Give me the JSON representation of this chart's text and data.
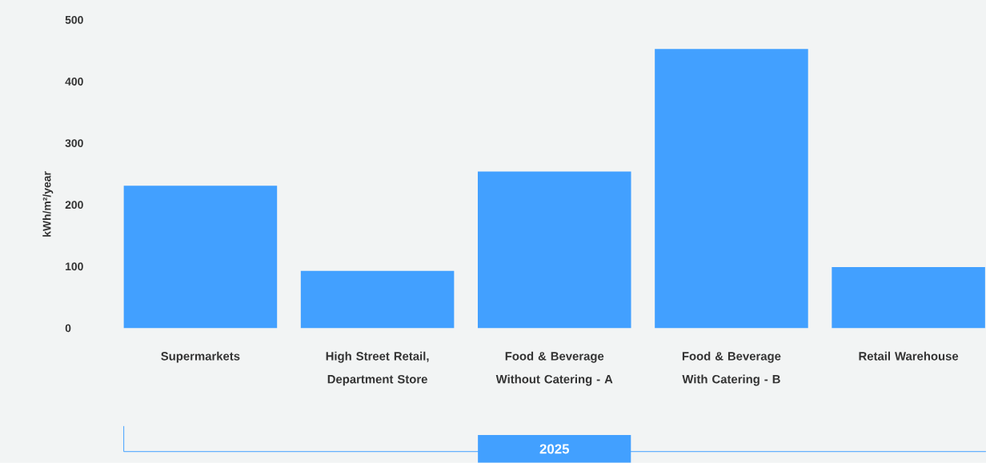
{
  "chart_data": {
    "type": "bar",
    "ylabel": "kWh/m²/year",
    "categories": [
      "Supermarkets",
      "High Street Retail, Department Store",
      "Food & Beverage Without Catering - A",
      "Food & Beverage With Catering - B",
      "Retail Warehouse"
    ],
    "values": [
      231,
      93,
      254,
      453,
      99
    ],
    "color": "#42a0ff",
    "ylim": [
      0,
      500
    ],
    "yticks": [
      0,
      100,
      200,
      300,
      400,
      500
    ],
    "annotations": [
      "2025"
    ]
  }
}
